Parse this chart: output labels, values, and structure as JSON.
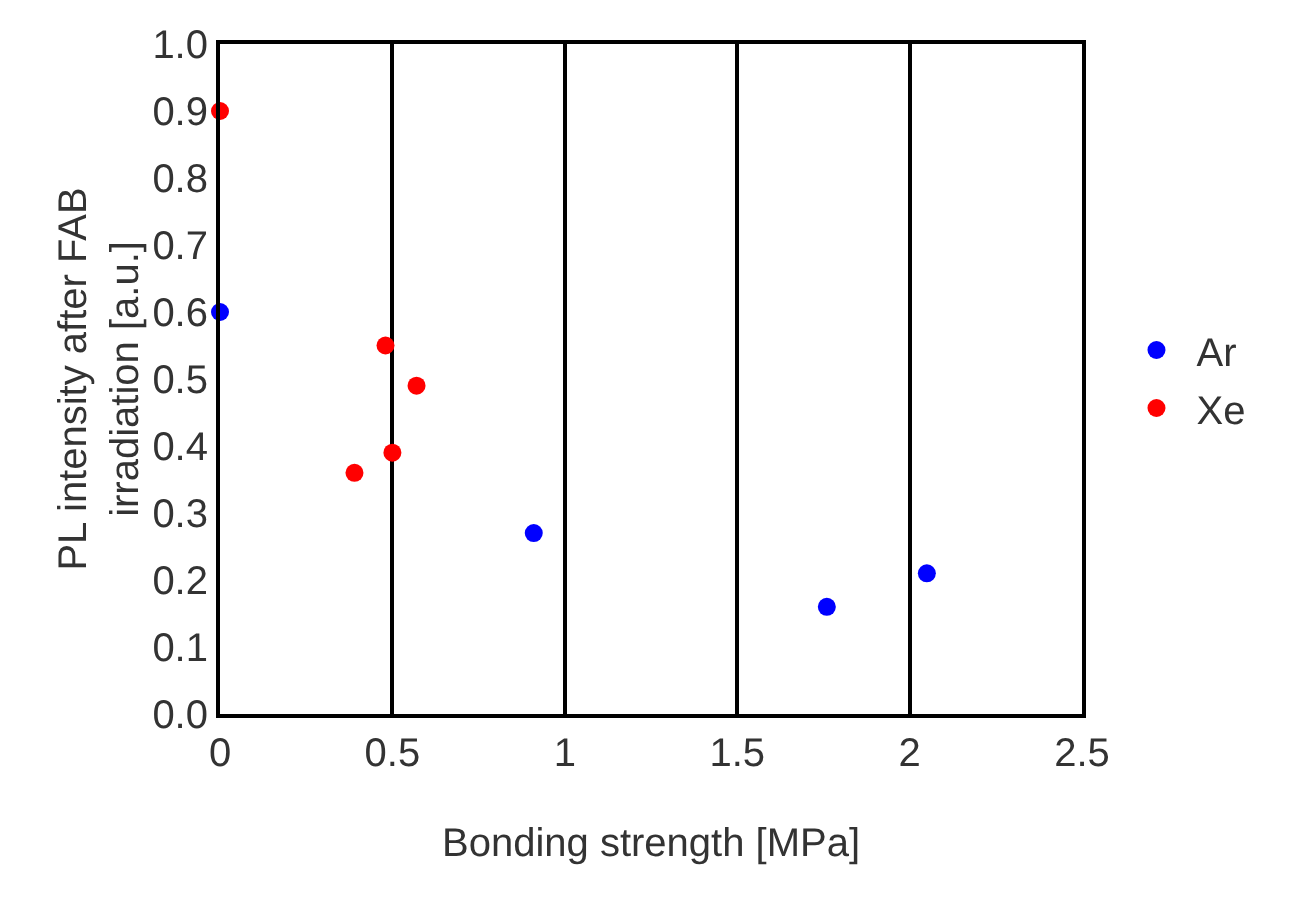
{
  "chart_data": {
    "type": "scatter",
    "xlabel": "Bonding strength [MPa]",
    "ylabel": "PL intensity after FAB\nirradiation [a.u.]",
    "xlim": [
      0,
      2.5
    ],
    "ylim": [
      0,
      1
    ],
    "xticks": [
      0,
      0.5,
      1,
      1.5,
      2,
      2.5
    ],
    "yticks": [
      {
        "value": 0,
        "label": "0.0"
      },
      0.1,
      0.2,
      0.3,
      0.4,
      0.5,
      0.6,
      0.7,
      0.8,
      0.9,
      {
        "value": 1,
        "label": "1.0"
      }
    ],
    "grid": "x",
    "legend": "right",
    "marker": "circle",
    "series": [
      {
        "name": "Ar",
        "color": "#0000ff",
        "x": [
          0,
          0.91,
          1.76,
          2.05
        ],
        "values": [
          0.6,
          0.27,
          0.16,
          0.21
        ]
      },
      {
        "name": "Xe",
        "color": "#ff0000",
        "x": [
          0,
          0.48,
          0.57,
          0.5,
          0.39
        ],
        "values": [
          0.9,
          0.55,
          0.49,
          0.39,
          0.36
        ]
      }
    ]
  }
}
